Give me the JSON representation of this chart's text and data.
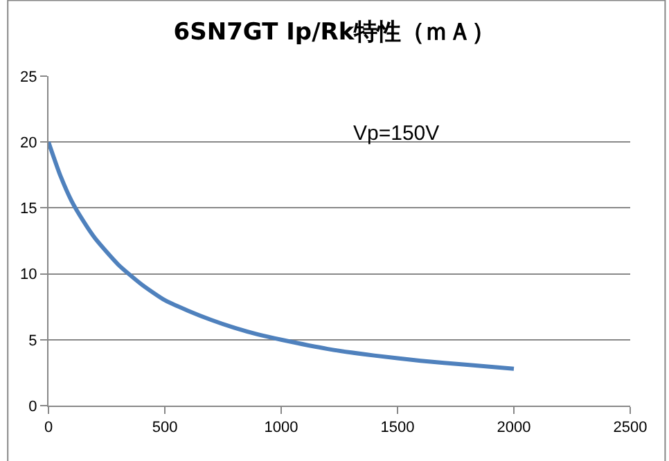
{
  "chart_data": {
    "type": "line",
    "title": "6SN7GT Ip/Rk特性（ｍＡ）",
    "annotations": [
      "Vp=150V"
    ],
    "x": [
      0,
      50,
      100,
      150,
      200,
      300,
      400,
      500,
      600,
      700,
      800,
      900,
      1000,
      1200,
      1400,
      1600,
      1800,
      2000
    ],
    "series": [
      {
        "color": "#4f81bd",
        "values": [
          20,
          17.5,
          15.5,
          14,
          12.7,
          10.7,
          9.2,
          8,
          7.2,
          6.5,
          5.9,
          5.4,
          5,
          4.3,
          3.8,
          3.4,
          3.1,
          2.8
        ]
      }
    ],
    "xlim": [
      0,
      2500
    ],
    "xticks": [
      0,
      500,
      1000,
      1500,
      2000,
      2500
    ],
    "ylim": [
      0,
      25
    ],
    "yticks": [
      0,
      5,
      10,
      15,
      20,
      25
    ],
    "grid": "y",
    "legend": false,
    "marker": "none",
    "line_style": "solid"
  }
}
